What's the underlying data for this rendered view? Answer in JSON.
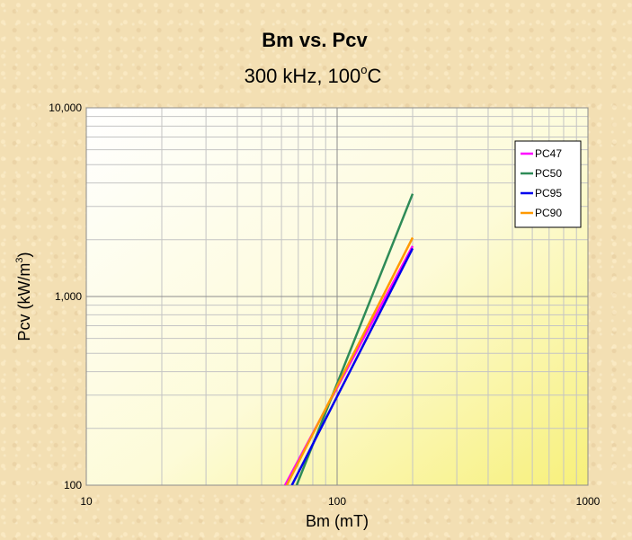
{
  "chart_data": {
    "type": "line",
    "title": "Bm vs. Pcv",
    "subtitle_main": "300 kHz, 100",
    "subtitle_deg": "o",
    "subtitle_unit": "C",
    "xlabel": "Bm (mT)",
    "ylabel_main": "Pcv (kW/m",
    "ylabel_sup": "3",
    "ylabel_close": ")",
    "x_scale": "log",
    "y_scale": "log",
    "xlim": [
      10,
      1000
    ],
    "ylim": [
      100,
      10000
    ],
    "x_ticks": [
      {
        "value": 10,
        "label": "10"
      },
      {
        "value": 100,
        "label": "100"
      },
      {
        "value": 1000,
        "label": "1000"
      }
    ],
    "y_ticks": [
      {
        "value": 100,
        "label": "100"
      },
      {
        "value": 1000,
        "label": "1,000"
      },
      {
        "value": 10000,
        "label": "10,000"
      }
    ],
    "grid": true,
    "legend_position": "top-right",
    "series": [
      {
        "name": "PC47",
        "color": "#ff00ff",
        "x": [
          62,
          200
        ],
        "y": [
          100,
          1850
        ]
      },
      {
        "name": "PC50",
        "color": "#2e8b57",
        "x": [
          69,
          200
        ],
        "y": [
          100,
          3500
        ]
      },
      {
        "name": "PC95",
        "color": "#0000ee",
        "x": [
          66,
          200
        ],
        "y": [
          100,
          1800
        ]
      },
      {
        "name": "PC90",
        "color": "#ff9900",
        "x": [
          63,
          200
        ],
        "y": [
          100,
          2050
        ]
      }
    ]
  }
}
